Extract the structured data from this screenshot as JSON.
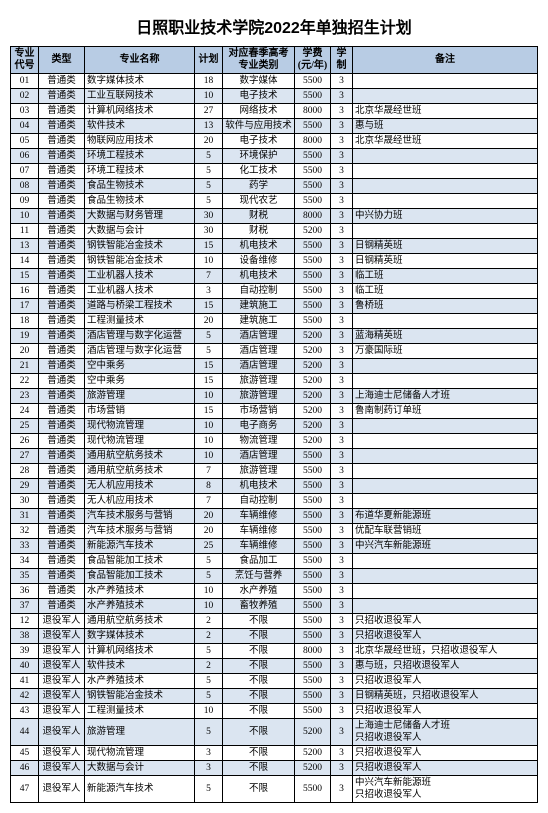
{
  "title": "日照职业技术学院2022年单独招生计划",
  "columns": [
    "专业\n代号",
    "类型",
    "专业名称",
    "计划",
    "对应春季高考\n专业类别",
    "学费\n(元/年)",
    "学\n制",
    "备注"
  ],
  "header_bg": "#b8cce4",
  "row_even_bg": "#dbe5f1",
  "row_odd_bg": "#ffffff",
  "rows": [
    [
      "01",
      "普通类",
      "数字媒体技术",
      "18",
      "数字媒体",
      "5500",
      "3",
      ""
    ],
    [
      "02",
      "普通类",
      "工业互联网技术",
      "10",
      "电子技术",
      "5500",
      "3",
      ""
    ],
    [
      "03",
      "普通类",
      "计算机网络技术",
      "27",
      "网络技术",
      "8000",
      "3",
      "北京华晟经世班"
    ],
    [
      "04",
      "普通类",
      "软件技术",
      "13",
      "软件与应用技术",
      "5500",
      "3",
      "惠与班"
    ],
    [
      "05",
      "普通类",
      "物联网应用技术",
      "20",
      "电子技术",
      "8000",
      "3",
      "北京华晟经世班"
    ],
    [
      "06",
      "普通类",
      "环境工程技术",
      "5",
      "环境保护",
      "5500",
      "3",
      ""
    ],
    [
      "07",
      "普通类",
      "环境工程技术",
      "5",
      "化工技术",
      "5500",
      "3",
      ""
    ],
    [
      "08",
      "普通类",
      "食品生物技术",
      "5",
      "药学",
      "5500",
      "3",
      ""
    ],
    [
      "09",
      "普通类",
      "食品生物技术",
      "5",
      "现代农艺",
      "5500",
      "3",
      ""
    ],
    [
      "10",
      "普通类",
      "大数据与财务管理",
      "30",
      "财税",
      "8000",
      "3",
      "中兴协力班"
    ],
    [
      "11",
      "普通类",
      "大数据与会计",
      "30",
      "财税",
      "5200",
      "3",
      ""
    ],
    [
      "13",
      "普通类",
      "钢铁智能冶金技术",
      "15",
      "机电技术",
      "5500",
      "3",
      "日钢精英班"
    ],
    [
      "14",
      "普通类",
      "钢铁智能冶金技术",
      "10",
      "设备维修",
      "5500",
      "3",
      "日钢精英班"
    ],
    [
      "15",
      "普通类",
      "工业机器人技术",
      "7",
      "机电技术",
      "5500",
      "3",
      "临工班"
    ],
    [
      "16",
      "普通类",
      "工业机器人技术",
      "3",
      "自动控制",
      "5500",
      "3",
      "临工班"
    ],
    [
      "17",
      "普通类",
      "道路与桥梁工程技术",
      "15",
      "建筑施工",
      "5500",
      "3",
      "鲁桥班"
    ],
    [
      "18",
      "普通类",
      "工程测量技术",
      "20",
      "建筑施工",
      "5500",
      "3",
      ""
    ],
    [
      "19",
      "普通类",
      "酒店管理与数字化运营",
      "5",
      "酒店管理",
      "5200",
      "3",
      "蓝海精英班"
    ],
    [
      "20",
      "普通类",
      "酒店管理与数字化运营",
      "5",
      "酒店管理",
      "5200",
      "3",
      "万豪国际班"
    ],
    [
      "21",
      "普通类",
      "空中乘务",
      "15",
      "酒店管理",
      "5200",
      "3",
      ""
    ],
    [
      "22",
      "普通类",
      "空中乘务",
      "15",
      "旅游管理",
      "5200",
      "3",
      ""
    ],
    [
      "23",
      "普通类",
      "旅游管理",
      "10",
      "旅游管理",
      "5200",
      "3",
      "上海迪士尼储备人才班"
    ],
    [
      "24",
      "普通类",
      "市场营销",
      "15",
      "市场营销",
      "5200",
      "3",
      "鲁南制药订单班"
    ],
    [
      "25",
      "普通类",
      "现代物流管理",
      "10",
      "电子商务",
      "5200",
      "3",
      ""
    ],
    [
      "26",
      "普通类",
      "现代物流管理",
      "10",
      "物流管理",
      "5200",
      "3",
      ""
    ],
    [
      "27",
      "普通类",
      "通用航空航务技术",
      "10",
      "酒店管理",
      "5500",
      "3",
      ""
    ],
    [
      "28",
      "普通类",
      "通用航空航务技术",
      "7",
      "旅游管理",
      "5500",
      "3",
      ""
    ],
    [
      "29",
      "普通类",
      "无人机应用技术",
      "8",
      "机电技术",
      "5500",
      "3",
      ""
    ],
    [
      "30",
      "普通类",
      "无人机应用技术",
      "7",
      "自动控制",
      "5500",
      "3",
      ""
    ],
    [
      "31",
      "普通类",
      "汽车技术服务与营销",
      "20",
      "车辆维修",
      "5500",
      "3",
      "布道华夏新能源班"
    ],
    [
      "32",
      "普通类",
      "汽车技术服务与营销",
      "20",
      "车辆维修",
      "5500",
      "3",
      "优配车联营销班"
    ],
    [
      "33",
      "普通类",
      "新能源汽车技术",
      "25",
      "车辆维修",
      "5500",
      "3",
      "中兴汽车新能源班"
    ],
    [
      "34",
      "普通类",
      "食品智能加工技术",
      "5",
      "食品加工",
      "5500",
      "3",
      ""
    ],
    [
      "35",
      "普通类",
      "食品智能加工技术",
      "5",
      "烹饪与营养",
      "5500",
      "3",
      ""
    ],
    [
      "36",
      "普通类",
      "水产养殖技术",
      "10",
      "水产养殖",
      "5500",
      "3",
      ""
    ],
    [
      "37",
      "普通类",
      "水产养殖技术",
      "10",
      "畜牧养殖",
      "5500",
      "3",
      ""
    ],
    [
      "12",
      "退役军人",
      "通用航空航务技术",
      "2",
      "不限",
      "5500",
      "3",
      "只招收退役军人"
    ],
    [
      "38",
      "退役军人",
      "数字媒体技术",
      "2",
      "不限",
      "5500",
      "3",
      "只招收退役军人"
    ],
    [
      "39",
      "退役军人",
      "计算机网络技术",
      "5",
      "不限",
      "8000",
      "3",
      "北京华晟经世班，只招收退役军人"
    ],
    [
      "40",
      "退役军人",
      "软件技术",
      "2",
      "不限",
      "5500",
      "3",
      "惠与班，只招收退役军人"
    ],
    [
      "41",
      "退役军人",
      "水产养殖技术",
      "5",
      "不限",
      "5500",
      "3",
      "只招收退役军人"
    ],
    [
      "42",
      "退役军人",
      "钢铁智能冶金技术",
      "5",
      "不限",
      "5500",
      "3",
      "日钢精英班，只招收退役军人"
    ],
    [
      "43",
      "退役军人",
      "工程测量技术",
      "10",
      "不限",
      "5500",
      "3",
      "只招收退役军人"
    ],
    [
      "44",
      "退役军人",
      "旅游管理",
      "5",
      "不限",
      "5200",
      "3",
      "上海迪士尼储备人才班\n只招收退役军人"
    ],
    [
      "45",
      "退役军人",
      "现代物流管理",
      "3",
      "不限",
      "5200",
      "3",
      "只招收退役军人"
    ],
    [
      "46",
      "退役军人",
      "大数据与会计",
      "3",
      "不限",
      "5200",
      "3",
      "只招收退役军人"
    ],
    [
      "47",
      "退役军人",
      "新能源汽车技术",
      "5",
      "不限",
      "5500",
      "3",
      "中兴汽车新能源班\n只招收退役军人"
    ]
  ]
}
